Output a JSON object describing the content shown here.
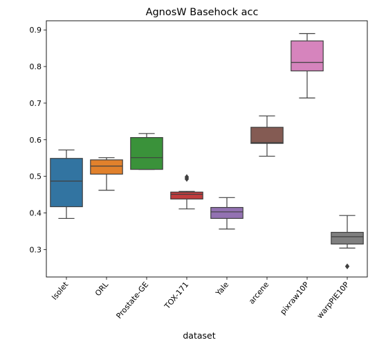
{
  "chart_data": {
    "type": "box",
    "title": "AgnosW Basehock acc",
    "xlabel": "dataset",
    "ylabel": "",
    "ylim": [
      0.225,
      0.925
    ],
    "yticks": [
      "0.3",
      "0.4",
      "0.5",
      "0.6",
      "0.7",
      "0.8",
      "0.9"
    ],
    "grid": false,
    "legend": "none",
    "boxes": [
      {
        "category": "Isolet",
        "color": "#3274a1",
        "whisker_low": 0.385,
        "q1": 0.417,
        "median": 0.487,
        "q3": 0.549,
        "whisker_high": 0.572,
        "outliers": []
      },
      {
        "category": "ORL",
        "color": "#e1812c",
        "whisker_low": 0.462,
        "q1": 0.506,
        "median": 0.528,
        "q3": 0.545,
        "whisker_high": 0.551,
        "outliers": []
      },
      {
        "category": "Prostate-GE",
        "color": "#3a923a",
        "whisker_low": 0.519,
        "q1": 0.519,
        "median": 0.551,
        "q3": 0.606,
        "whisker_high": 0.617,
        "outliers": []
      },
      {
        "category": "TOX-171",
        "color": "#c03d3e",
        "whisker_low": 0.411,
        "q1": 0.438,
        "median": 0.451,
        "q3": 0.457,
        "whisker_high": 0.459,
        "outliers": [
          0.493,
          0.498
        ]
      },
      {
        "category": "Yale",
        "color": "#9372b2",
        "whisker_low": 0.356,
        "q1": 0.385,
        "median": 0.403,
        "q3": 0.415,
        "whisker_high": 0.442,
        "outliers": []
      },
      {
        "category": "arcene",
        "color": "#845b53",
        "whisker_low": 0.555,
        "q1": 0.59,
        "median": 0.592,
        "q3": 0.634,
        "whisker_high": 0.665,
        "outliers": []
      },
      {
        "category": "pixraw10P",
        "color": "#d684bd",
        "whisker_low": 0.714,
        "q1": 0.788,
        "median": 0.811,
        "q3": 0.87,
        "whisker_high": 0.89,
        "outliers": []
      },
      {
        "category": "warpPIE10P",
        "color": "#7f7f7f",
        "whisker_low": 0.304,
        "q1": 0.315,
        "median": 0.335,
        "q3": 0.347,
        "whisker_high": 0.393,
        "outliers": [
          0.254
        ]
      }
    ]
  }
}
